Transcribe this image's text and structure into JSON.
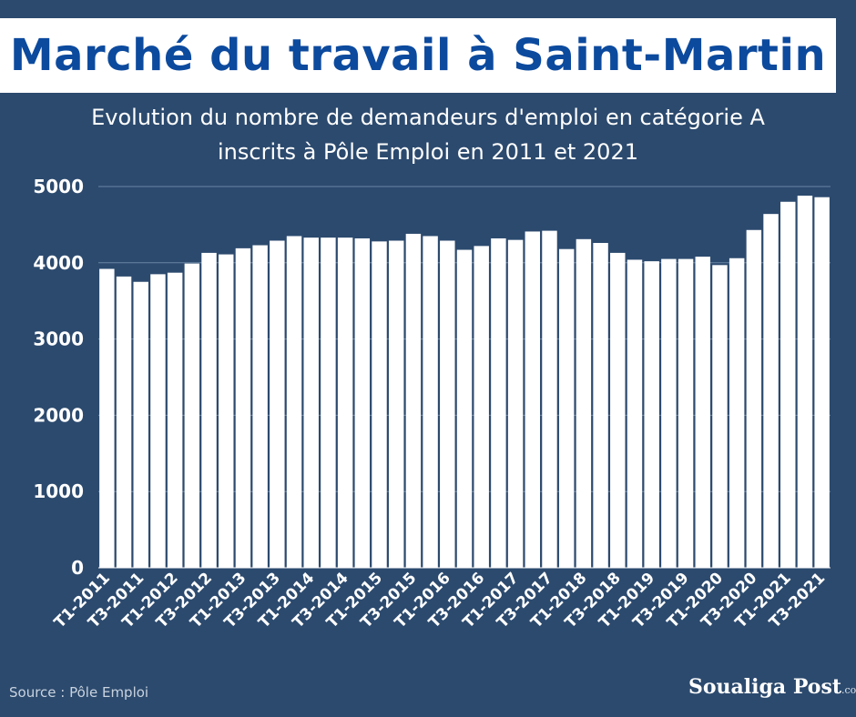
{
  "header": {
    "title": "Marché du travail à Saint-Martin",
    "subtitle_line1": "Evolution du nombre de demandeurs d'emploi en catégorie A",
    "subtitle_line2": "inscrits à Pôle Emploi en 2011 et 2021"
  },
  "footer": {
    "source": "Source : Pôle Emploi",
    "logo": "Soualiga Post",
    "logo_suffix": ".com"
  },
  "colors": {
    "background": "#2c4a6e",
    "title": "#0c4a9e",
    "bar": "#ffffff",
    "grid": "#6a84a4"
  },
  "chart_data": {
    "type": "bar",
    "title": "Evolution du nombre de demandeurs d'emploi en catégorie A inscrits à Pôle Emploi en 2011 et 2021",
    "xlabel": "",
    "ylabel": "",
    "ylim": [
      0,
      5000
    ],
    "yticks": [
      0,
      1000,
      2000,
      3000,
      4000,
      5000
    ],
    "grid": true,
    "categories": [
      "T1-2011",
      "T2-2011",
      "T3-2011",
      "T4-2011",
      "T1-2012",
      "T2-2012",
      "T3-2012",
      "T4-2012",
      "T1-2013",
      "T2-2013",
      "T3-2013",
      "T4-2013",
      "T1-2014",
      "T2-2014",
      "T3-2014",
      "T4-2014",
      "T1-2015",
      "T2-2015",
      "T3-2015",
      "T4-2015",
      "T1-2016",
      "T2-2016",
      "T3-2016",
      "T4-2016",
      "T1-2017",
      "T2-2017",
      "T3-2017",
      "T4-2017",
      "T1-2018",
      "T2-2018",
      "T3-2018",
      "T4-2018",
      "T1-2019",
      "T2-2019",
      "T3-2019",
      "T4-2019",
      "T1-2020",
      "T2-2020",
      "T3-2020",
      "T4-2020",
      "T1-2021",
      "T2-2021",
      "T3-2021"
    ],
    "tick_labels": [
      "T1-2011",
      "T3-2011",
      "T1-2012",
      "T3-2012",
      "T1-2013",
      "T3-2013",
      "T1-2014",
      "T3-2014",
      "T1-2015",
      "T3-2015",
      "T1-2016",
      "T3-2016",
      "T1-2017",
      "T3-2017",
      "T1-2018",
      "T3-2018",
      "T1-2019",
      "T3-2019",
      "T1-2020",
      "T3-2020",
      "T1-2021",
      "T3-2021"
    ],
    "values": [
      3920,
      3820,
      3750,
      3850,
      3870,
      3990,
      4130,
      4110,
      4190,
      4230,
      4290,
      4350,
      4330,
      4330,
      4330,
      4320,
      4280,
      4290,
      4380,
      4350,
      4290,
      4170,
      4220,
      4320,
      4300,
      4410,
      4420,
      4180,
      4310,
      4260,
      4130,
      4040,
      4020,
      4050,
      4050,
      4080,
      3970,
      4060,
      4430,
      4640,
      4800,
      4880,
      4860
    ],
    "legend": "none"
  }
}
